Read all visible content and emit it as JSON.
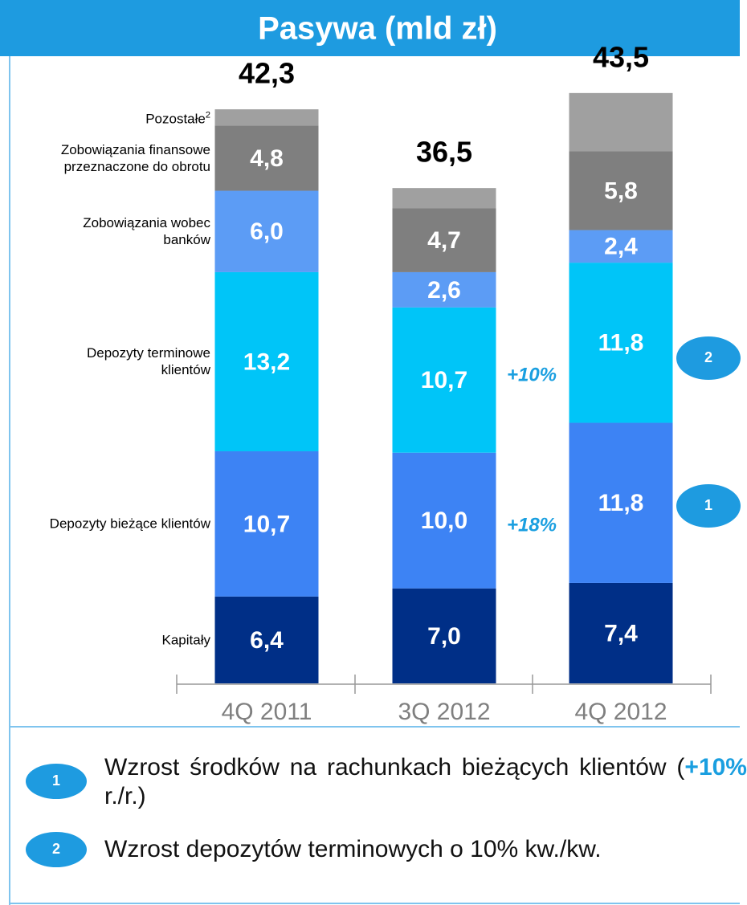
{
  "title": "Pasywa (mld zł)",
  "chart_data": {
    "type": "stacked_bar",
    "categories": [
      "4Q 2011",
      "3Q 2012",
      "4Q 2012"
    ],
    "ylim": [
      0,
      45
    ],
    "series": [
      {
        "name": "Kapitały",
        "color": "#002f87",
        "values": [
          6.4,
          7.0,
          7.4
        ],
        "value_labels": [
          "6,4",
          "7,0",
          "7,4"
        ]
      },
      {
        "name": "Depozyty bieżące klientów",
        "color": "#3d83f4",
        "values": [
          10.7,
          10.0,
          11.8
        ],
        "value_labels": [
          "10,7",
          "10,0",
          "11,8"
        ]
      },
      {
        "name": "Depozyty terminowe klientów",
        "color": "#00c5f8",
        "values": [
          13.2,
          10.7,
          11.8
        ],
        "value_labels": [
          "13,2",
          "10,7",
          "11,8"
        ]
      },
      {
        "name": "Zobowiązania wobec banków",
        "color": "#5c9cf5",
        "values": [
          6.0,
          2.6,
          2.4
        ],
        "value_labels": [
          "6,0",
          "2,6",
          "2,4"
        ]
      },
      {
        "name": "Zobowiązania finansowe przeznaczone do obrotu",
        "color": "#7f7f7f",
        "values": [
          4.8,
          4.7,
          5.8
        ],
        "value_labels": [
          "4,8",
          "4,7",
          "5,8"
        ]
      },
      {
        "name": "Pozostałe",
        "name_note": "2",
        "color": "#a0a0a0",
        "values": [
          1.2,
          1.5,
          4.3
        ]
      }
    ],
    "totals": [
      42.3,
      36.5,
      43.5
    ],
    "total_labels": [
      "42,3",
      "36,5",
      "43,5"
    ],
    "annotations": [
      "+10%",
      "+18%"
    ],
    "badges": [
      "2",
      "1"
    ]
  },
  "notes": [
    {
      "marker": "1",
      "parts": [
        "Wzrost środków na rachunkach bieżących klientów (",
        "+10%",
        " r./r.)"
      ]
    },
    {
      "marker": "2",
      "parts": [
        "Wzrost depozytów terminowych o 10% kw./kw."
      ]
    }
  ]
}
